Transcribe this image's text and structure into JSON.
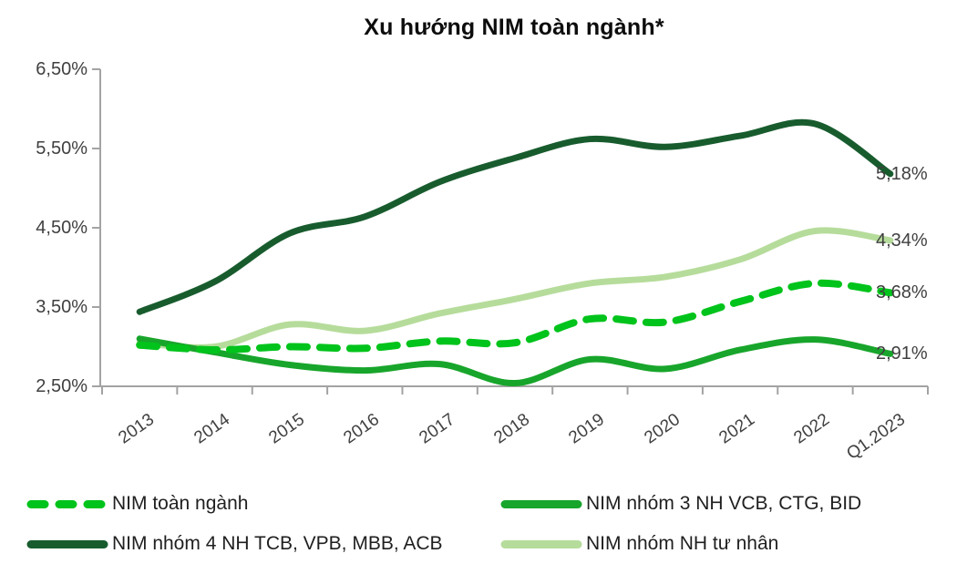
{
  "title": "Xu hướng NIM toàn ngành*",
  "colors": {
    "industry_dashed": "#00c31b",
    "group3_green": "#18a52b",
    "group4_dark_green": "#185c2e",
    "private_light_green": "#b6dc9b",
    "axis_gray": "#a3a3a3",
    "tick_text": "#404040",
    "legend_text": "#1f1f1f"
  },
  "chart_data": {
    "type": "line",
    "title": "Xu hướng NIM toàn ngành*",
    "categories": [
      "2013",
      "2014",
      "2015",
      "2016",
      "2017",
      "2018",
      "2019",
      "2020",
      "2021",
      "2022",
      "Q1.2023"
    ],
    "xlabel": "",
    "ylabel": "",
    "ylim": [
      2.5,
      6.5
    ],
    "y_tick_step": 1.0,
    "y_ticks": [
      "6,50%",
      "5,50%",
      "4,50%",
      "3,50%",
      "2,50%"
    ],
    "grid": false,
    "legend_position": "bottom",
    "series": [
      {
        "name": "NIM toàn ngành",
        "style": "dashed",
        "color": "#00c31b",
        "values": [
          3.02,
          2.96,
          3.0,
          2.98,
          3.07,
          3.05,
          3.35,
          3.31,
          3.57,
          3.8,
          3.68
        ],
        "end_label": "3,68%"
      },
      {
        "name": "NIM nhóm 3 NH VCB, CTG, BID",
        "style": "solid",
        "color": "#18a52b",
        "values": [
          3.1,
          2.93,
          2.77,
          2.7,
          2.78,
          2.54,
          2.84,
          2.72,
          2.96,
          3.09,
          2.91
        ],
        "end_label": "2,91%"
      },
      {
        "name": "NIM nhóm 4 NH TCB, VPB, MBB, ACB",
        "style": "solid",
        "color": "#185c2e",
        "values": [
          3.44,
          3.82,
          4.43,
          4.64,
          5.08,
          5.38,
          5.62,
          5.52,
          5.66,
          5.81,
          5.18
        ],
        "end_label": "5,18%"
      },
      {
        "name": "NIM nhóm NH tư nhân",
        "style": "solid",
        "color": "#b6dc9b",
        "values": [
          3.05,
          3.0,
          3.28,
          3.2,
          3.42,
          3.6,
          3.8,
          3.88,
          4.1,
          4.46,
          4.34
        ],
        "end_label": "4,34%"
      }
    ]
  }
}
